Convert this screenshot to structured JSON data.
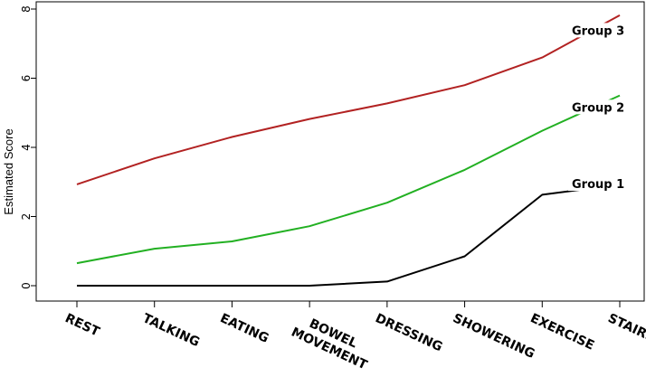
{
  "chart_data": {
    "type": "line",
    "title": "",
    "xlabel": "",
    "ylabel": "Estimated Score",
    "ylim": [
      0,
      8
    ],
    "yticks": [
      0,
      2,
      4,
      6,
      8
    ],
    "grid": false,
    "legend": "inline-end-labels",
    "categories": [
      [
        "REST"
      ],
      [
        "TALKING"
      ],
      [
        "EATING"
      ],
      [
        "BOWEL",
        "MOVEMENT"
      ],
      [
        "DRESSING"
      ],
      [
        "SHOWERING"
      ],
      [
        "EXERCISE"
      ],
      [
        "STAIRS"
      ]
    ],
    "series": [
      {
        "name": "Group 1",
        "color": "#000000",
        "values": [
          0.0,
          0.0,
          0.0,
          0.0,
          0.12,
          0.85,
          2.63,
          2.92
        ]
      },
      {
        "name": "Group 2",
        "color": "#22b022",
        "values": [
          0.65,
          1.07,
          1.28,
          1.72,
          2.4,
          3.35,
          4.48,
          5.5
        ]
      },
      {
        "name": "Group 3",
        "color": "#b22222",
        "values": [
          2.93,
          3.68,
          4.3,
          4.82,
          5.27,
          5.8,
          6.6,
          7.82
        ]
      }
    ]
  }
}
